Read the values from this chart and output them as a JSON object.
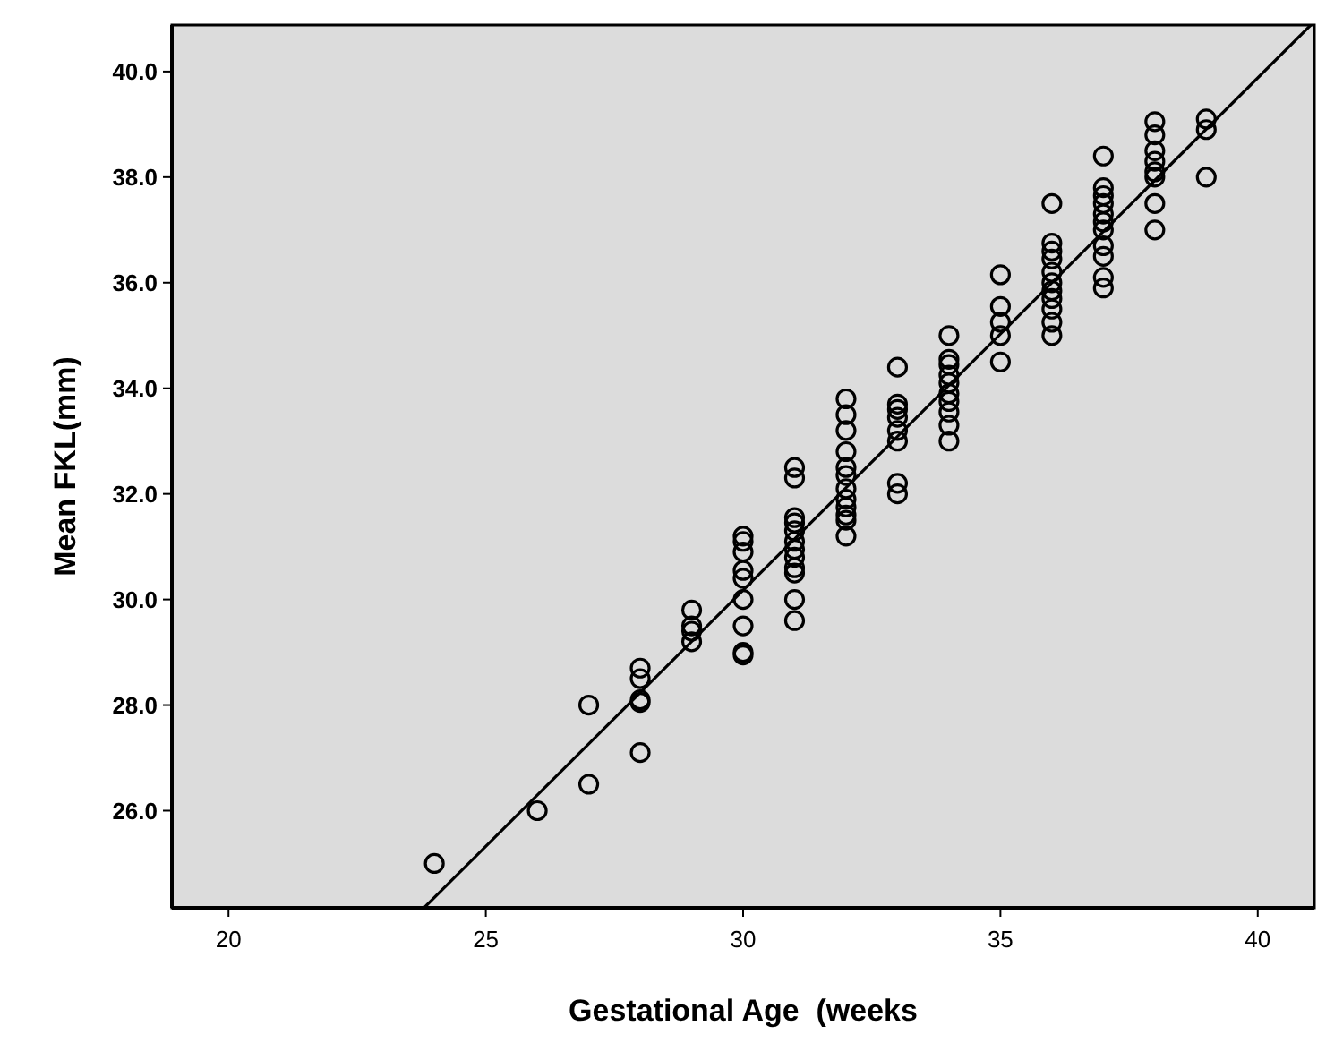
{
  "chart_data": {
    "type": "scatter",
    "xlabel": "Gestational Age  (weeks",
    "ylabel": "Mean FKL(mm)",
    "xlim": [
      18.9,
      41.1
    ],
    "ylim": [
      24.16,
      40.88
    ],
    "xticks": [
      20,
      25,
      30,
      35,
      40
    ],
    "yticks": [
      {
        "value": 26,
        "label": "26.0"
      },
      {
        "value": 28,
        "label": "28.0"
      },
      {
        "value": 30,
        "label": "30.0"
      },
      {
        "value": 32,
        "label": "32.0"
      },
      {
        "value": 34,
        "label": "34.0"
      },
      {
        "value": 36,
        "label": "36.0"
      },
      {
        "value": 38,
        "label": "38.0"
      },
      {
        "value": 40,
        "label": "40.0"
      }
    ],
    "grid": false,
    "marker": "circle",
    "series": [
      {
        "color": "#000000",
        "x": [
          24,
          26,
          27,
          27,
          28,
          28,
          28,
          28,
          28,
          29,
          29,
          29,
          29,
          30,
          30,
          30,
          30,
          30,
          30,
          30,
          30,
          30,
          31,
          31,
          31,
          31,
          31,
          31,
          31,
          31,
          31,
          31,
          31,
          31,
          32,
          32,
          32,
          32,
          32,
          32,
          32,
          32,
          32,
          32,
          32,
          32,
          33,
          33,
          33,
          33,
          33,
          33,
          33,
          33,
          34,
          34,
          34,
          34,
          34,
          34,
          34,
          34,
          34,
          34,
          35,
          35,
          35,
          35,
          35,
          36,
          36,
          36,
          36,
          36,
          36,
          36,
          36,
          36,
          36,
          36,
          37,
          37,
          37,
          37,
          37,
          37,
          37,
          37,
          37,
          37,
          37,
          38,
          38,
          38,
          38,
          38,
          38,
          38,
          38,
          39,
          39,
          39
        ],
        "values": [
          25.0,
          26.0,
          28.0,
          26.5,
          28.7,
          28.5,
          28.1,
          28.05,
          27.1,
          29.8,
          29.5,
          29.4,
          29.2,
          31.2,
          31.1,
          30.9,
          30.55,
          30.4,
          30.0,
          29.5,
          29.0,
          28.95,
          32.5,
          32.3,
          31.55,
          31.45,
          31.3,
          31.1,
          30.95,
          30.8,
          30.6,
          30.5,
          30.0,
          29.6,
          33.8,
          33.5,
          33.2,
          32.8,
          32.5,
          32.35,
          32.1,
          31.9,
          31.75,
          31.6,
          31.5,
          31.2,
          34.4,
          33.7,
          33.6,
          33.45,
          33.2,
          33.0,
          32.2,
          32.0,
          35.0,
          34.55,
          34.45,
          34.25,
          34.1,
          33.9,
          33.75,
          33.55,
          33.3,
          33.0,
          36.15,
          35.55,
          35.25,
          35.0,
          34.5,
          37.5,
          36.75,
          36.6,
          36.45,
          36.2,
          36.0,
          35.85,
          35.7,
          35.5,
          35.25,
          35.0,
          38.4,
          37.8,
          37.65,
          37.5,
          37.3,
          37.15,
          37.0,
          36.7,
          36.5,
          36.1,
          35.9,
          39.05,
          38.8,
          38.5,
          38.3,
          38.1,
          38.0,
          37.5,
          37.0,
          39.1,
          38.9,
          38.0
        ]
      },
      {
        "type": "line",
        "color": "#000000",
        "marker": "none",
        "line_style": "solid",
        "x": [
          23.8,
          41.03
        ],
        "values": [
          24.16,
          40.88
        ]
      }
    ]
  }
}
